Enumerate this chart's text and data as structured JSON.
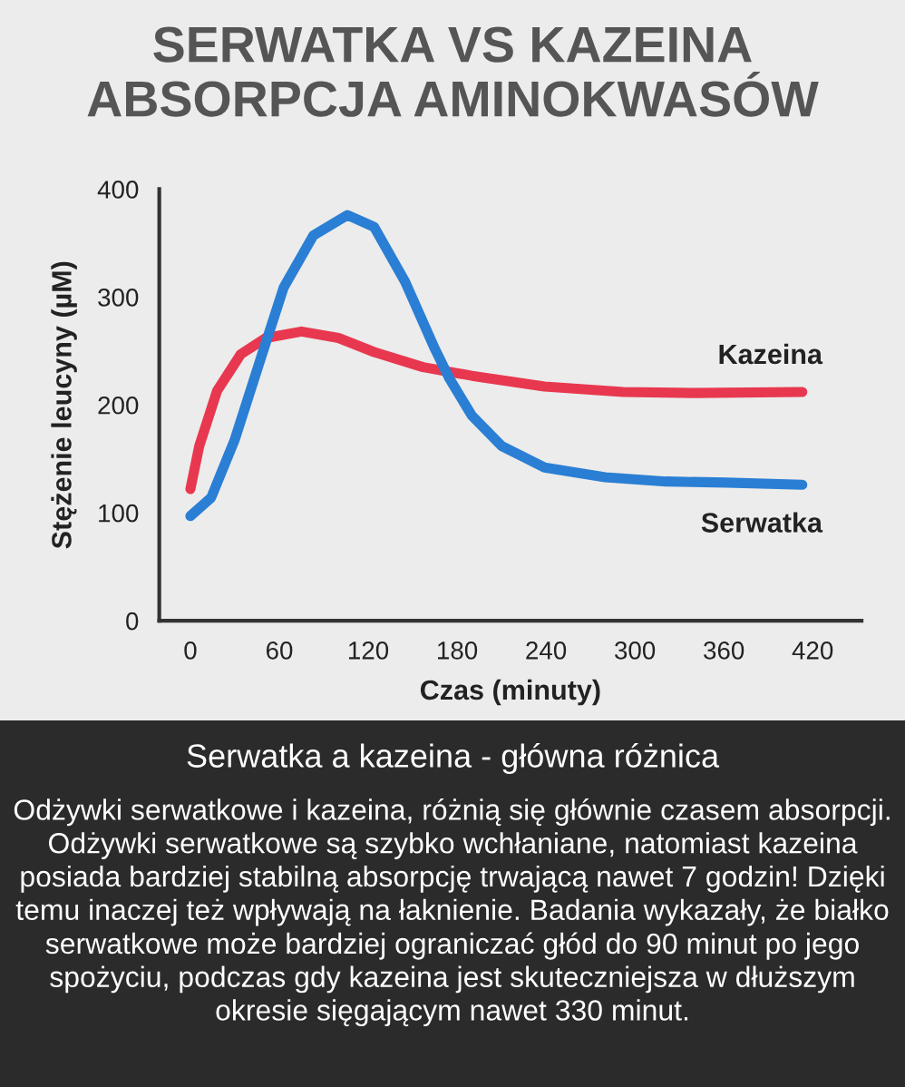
{
  "chart_data": {
    "type": "line",
    "title": "SERWATKA VS KAZEINA",
    "subtitle": "ABSORPCJA AMINOKWASÓW",
    "xlabel": "Czas (minuty)",
    "ylabel": "Stężenie leucyny (µM)",
    "xlim": [
      -21,
      453
    ],
    "xticks": [
      0,
      60,
      120,
      180,
      240,
      300,
      360,
      420
    ],
    "ylim": [
      0,
      400
    ],
    "yticks": [
      0,
      100,
      200,
      300,
      400
    ],
    "grid": false,
    "legend": false,
    "marker": "none",
    "line_style": "solid",
    "series": [
      {
        "name": "Kazeina",
        "color": "#e8384f",
        "x": [
          0,
          6,
          18,
          34,
          51,
          75,
          100,
          124,
          157,
          190,
          239,
          292,
          341,
          413
        ],
        "values": [
          122,
          162,
          213,
          247,
          262,
          268,
          262,
          249,
          235,
          227,
          217,
          212,
          211,
          212
        ]
      },
      {
        "name": "Serwatka",
        "color": "#2a7fd4",
        "x": [
          0,
          14,
          30,
          47,
          63,
          83,
          106,
          124,
          145,
          165,
          175,
          190,
          210,
          239,
          280,
          321,
          362,
          413
        ],
        "values": [
          97,
          114,
          168,
          241,
          309,
          357,
          376,
          365,
          314,
          252,
          224,
          190,
          162,
          142,
          133,
          129,
          128,
          126
        ]
      }
    ],
    "annotations": [
      "Serwatka a kazeina - główna różnica",
      "Odżywki serwatkowe i kazeina, różnią się głównie czasem absorpcji. Odżywki serwatkowe są szybko wchłaniane, natomiast kazeina posiada bardziej stabilną absorpcję trwającą nawet 7 godzin! Dzięki temu inaczej też wpływają na łaknienie. Badania wykazały, że białko serwatkowe może bardziej ograniczać głód do 90 minut po jego spożyciu, podczas gdy kazeina jest skuteczniejsza w dłuższym okresie sięgającym nawet 330 minut."
    ]
  }
}
